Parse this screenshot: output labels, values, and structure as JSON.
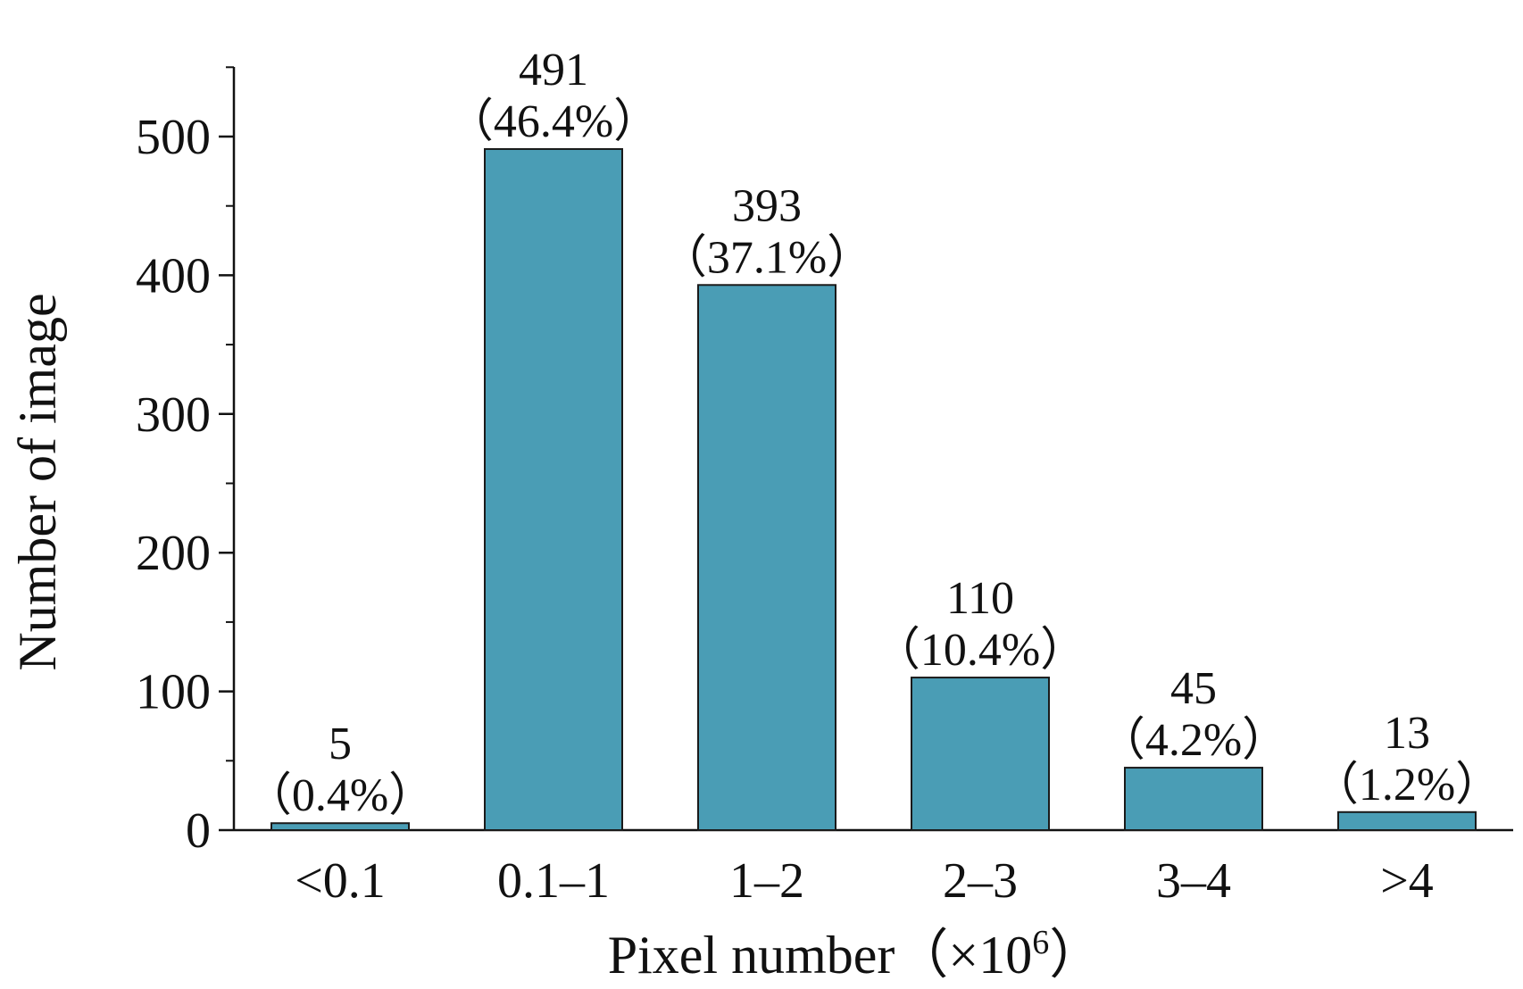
{
  "chart_data": {
    "type": "bar",
    "title": "",
    "xlabel": "Pixel number（×10",
    "xlabel_superscript": "6",
    "xlabel_suffix": "）",
    "ylabel": "Number of image",
    "categories": [
      "<0.1",
      "0.1–1",
      "1–2",
      "2–3",
      "3–4",
      ">4"
    ],
    "values": [
      5,
      491,
      393,
      110,
      45,
      13
    ],
    "value_labels": [
      "5",
      "491",
      "393",
      "110",
      "45",
      "13"
    ],
    "percent_labels": [
      "（0.4%）",
      "（46.4%）",
      "（37.1%）",
      "（10.4%）",
      "（4.2%）",
      "（1.2%）"
    ],
    "ylim": [
      0,
      550
    ],
    "yticks": [
      0,
      100,
      200,
      300,
      400,
      500
    ],
    "ytick_labels": [
      "0",
      "100",
      "200",
      "300",
      "400",
      "500"
    ],
    "minor_ytick_step": 50,
    "grid": false,
    "legend": "none",
    "bar_color": "#4A9DB5",
    "bar_edge_color": "#1a1a1a"
  }
}
